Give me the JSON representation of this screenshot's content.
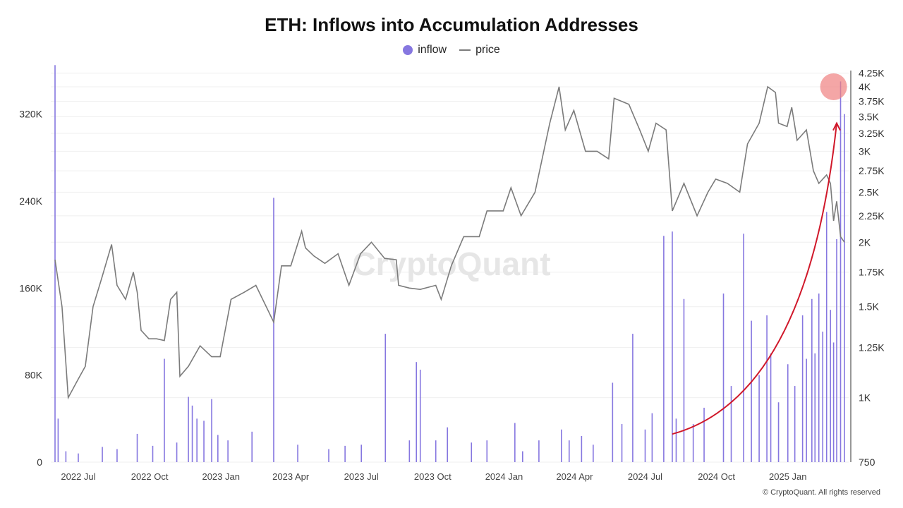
{
  "chart_data": {
    "type": "bar+line",
    "title": "ETH: Inflows into Accumulation Addresses",
    "legend": [
      {
        "name": "inflow",
        "marker": "dot",
        "color": "#8677e0"
      },
      {
        "name": "price",
        "marker": "line",
        "color": "#7b7b7b"
      }
    ],
    "legend_position": "top-center",
    "grid": true,
    "x_axis": {
      "type": "date",
      "range": [
        "2022-06-01",
        "2025-03-15"
      ],
      "tick_labels": [
        "2022 Jul",
        "2022 Oct",
        "2023 Jan",
        "2023 Apr",
        "2023 Jul",
        "2023 Oct",
        "2024 Jan",
        "2024 Apr",
        "2024 Jul",
        "2024 Oct",
        "2025 Jan"
      ]
    },
    "y_axis_left": {
      "series": "inflow",
      "range": [
        0,
        360000
      ],
      "tick_labels": [
        "0",
        "80K",
        "160K",
        "240K",
        "320K"
      ],
      "tick_values": [
        0,
        80000,
        160000,
        240000,
        320000
      ]
    },
    "y_axis_right": {
      "series": "price",
      "scale": "log",
      "range": [
        750,
        4300
      ],
      "tick_labels": [
        "750",
        "1K",
        "1.25K",
        "1.5K",
        "1.75K",
        "2K",
        "2.25K",
        "2.5K",
        "2.75K",
        "3K",
        "3.25K",
        "3.5K",
        "3.75K",
        "4K",
        "4.25K"
      ],
      "tick_values": [
        750,
        1000,
        1250,
        1500,
        1750,
        2000,
        2250,
        2500,
        2750,
        3000,
        3250,
        3500,
        3750,
        4000,
        4250
      ]
    },
    "series": [
      {
        "name": "inflow",
        "type": "bar",
        "color": "#8677e0",
        "points": [
          [
            "2022-06-01",
            365000
          ],
          [
            "2022-06-05",
            40000
          ],
          [
            "2022-06-15",
            10000
          ],
          [
            "2022-07-01",
            8000
          ],
          [
            "2022-08-01",
            14000
          ],
          [
            "2022-08-20",
            12000
          ],
          [
            "2022-09-15",
            26000
          ],
          [
            "2022-10-05",
            15000
          ],
          [
            "2022-10-20",
            95000
          ],
          [
            "2022-11-05",
            18000
          ],
          [
            "2022-11-20",
            60000
          ],
          [
            "2022-11-25",
            52000
          ],
          [
            "2022-12-01",
            40000
          ],
          [
            "2022-12-10",
            38000
          ],
          [
            "2022-12-20",
            58000
          ],
          [
            "2022-12-28",
            25000
          ],
          [
            "2023-01-10",
            20000
          ],
          [
            "2023-02-10",
            28000
          ],
          [
            "2023-03-10",
            243000
          ],
          [
            "2023-04-10",
            16000
          ],
          [
            "2023-05-20",
            12000
          ],
          [
            "2023-06-10",
            15000
          ],
          [
            "2023-07-01",
            16000
          ],
          [
            "2023-08-01",
            118000
          ],
          [
            "2023-09-01",
            20000
          ],
          [
            "2023-09-10",
            92000
          ],
          [
            "2023-09-15",
            85000
          ],
          [
            "2023-10-05",
            20000
          ],
          [
            "2023-10-20",
            32000
          ],
          [
            "2023-11-20",
            18000
          ],
          [
            "2023-12-10",
            20000
          ],
          [
            "2024-01-15",
            36000
          ],
          [
            "2024-01-25",
            10000
          ],
          [
            "2024-02-15",
            20000
          ],
          [
            "2024-03-15",
            30000
          ],
          [
            "2024-03-25",
            20000
          ],
          [
            "2024-04-10",
            24000
          ],
          [
            "2024-04-25",
            16000
          ],
          [
            "2024-05-20",
            73000
          ],
          [
            "2024-06-01",
            35000
          ],
          [
            "2024-06-15",
            118000
          ],
          [
            "2024-07-01",
            30000
          ],
          [
            "2024-07-10",
            45000
          ],
          [
            "2024-07-25",
            208000
          ],
          [
            "2024-08-05",
            212000
          ],
          [
            "2024-08-10",
            40000
          ],
          [
            "2024-08-20",
            150000
          ],
          [
            "2024-09-01",
            35000
          ],
          [
            "2024-09-15",
            50000
          ],
          [
            "2024-10-10",
            155000
          ],
          [
            "2024-10-20",
            70000
          ],
          [
            "2024-11-05",
            210000
          ],
          [
            "2024-11-15",
            130000
          ],
          [
            "2024-11-25",
            80000
          ],
          [
            "2024-12-05",
            135000
          ],
          [
            "2024-12-10",
            100000
          ],
          [
            "2024-12-20",
            55000
          ],
          [
            "2025-01-01",
            90000
          ],
          [
            "2025-01-10",
            70000
          ],
          [
            "2025-01-20",
            135000
          ],
          [
            "2025-01-25",
            95000
          ],
          [
            "2025-02-01",
            150000
          ],
          [
            "2025-02-05",
            100000
          ],
          [
            "2025-02-10",
            155000
          ],
          [
            "2025-02-15",
            120000
          ],
          [
            "2025-02-20",
            230000
          ],
          [
            "2025-02-25",
            140000
          ],
          [
            "2025-03-01",
            110000
          ],
          [
            "2025-03-05",
            205000
          ],
          [
            "2025-03-10",
            350000
          ],
          [
            "2025-03-15",
            320000
          ]
        ]
      },
      {
        "name": "price",
        "type": "line",
        "color": "#7b7b7b",
        "points": [
          [
            "2022-06-01",
            1850
          ],
          [
            "2022-06-10",
            1500
          ],
          [
            "2022-06-18",
            1000
          ],
          [
            "2022-06-30",
            1080
          ],
          [
            "2022-07-10",
            1150
          ],
          [
            "2022-07-20",
            1500
          ],
          [
            "2022-07-31",
            1700
          ],
          [
            "2022-08-13",
            1980
          ],
          [
            "2022-08-20",
            1650
          ],
          [
            "2022-08-31",
            1550
          ],
          [
            "2022-09-10",
            1750
          ],
          [
            "2022-09-15",
            1600
          ],
          [
            "2022-09-20",
            1350
          ],
          [
            "2022-09-30",
            1300
          ],
          [
            "2022-10-10",
            1300
          ],
          [
            "2022-10-20",
            1290
          ],
          [
            "2022-10-28",
            1550
          ],
          [
            "2022-11-05",
            1600
          ],
          [
            "2022-11-09",
            1100
          ],
          [
            "2022-11-20",
            1150
          ],
          [
            "2022-12-05",
            1260
          ],
          [
            "2022-12-20",
            1200
          ],
          [
            "2022-12-31",
            1200
          ],
          [
            "2023-01-14",
            1550
          ],
          [
            "2023-01-31",
            1600
          ],
          [
            "2023-02-15",
            1650
          ],
          [
            "2023-03-10",
            1400
          ],
          [
            "2023-03-20",
            1800
          ],
          [
            "2023-04-01",
            1800
          ],
          [
            "2023-04-15",
            2100
          ],
          [
            "2023-04-20",
            1950
          ],
          [
            "2023-05-01",
            1880
          ],
          [
            "2023-05-15",
            1820
          ],
          [
            "2023-06-01",
            1900
          ],
          [
            "2023-06-15",
            1650
          ],
          [
            "2023-06-30",
            1900
          ],
          [
            "2023-07-14",
            2000
          ],
          [
            "2023-07-31",
            1860
          ],
          [
            "2023-08-15",
            1850
          ],
          [
            "2023-08-18",
            1650
          ],
          [
            "2023-09-01",
            1630
          ],
          [
            "2023-09-15",
            1620
          ],
          [
            "2023-10-05",
            1650
          ],
          [
            "2023-10-12",
            1550
          ],
          [
            "2023-10-25",
            1800
          ],
          [
            "2023-11-10",
            2050
          ],
          [
            "2023-11-30",
            2050
          ],
          [
            "2023-12-10",
            2300
          ],
          [
            "2023-12-31",
            2300
          ],
          [
            "2024-01-10",
            2550
          ],
          [
            "2024-01-23",
            2250
          ],
          [
            "2024-02-10",
            2500
          ],
          [
            "2024-02-29",
            3400
          ],
          [
            "2024-03-12",
            4000
          ],
          [
            "2024-03-20",
            3300
          ],
          [
            "2024-03-31",
            3600
          ],
          [
            "2024-04-15",
            3000
          ],
          [
            "2024-04-30",
            3000
          ],
          [
            "2024-05-15",
            2900
          ],
          [
            "2024-05-22",
            3800
          ],
          [
            "2024-06-10",
            3700
          ],
          [
            "2024-06-24",
            3300
          ],
          [
            "2024-07-05",
            3000
          ],
          [
            "2024-07-15",
            3400
          ],
          [
            "2024-07-28",
            3300
          ],
          [
            "2024-08-05",
            2300
          ],
          [
            "2024-08-20",
            2600
          ],
          [
            "2024-09-06",
            2250
          ],
          [
            "2024-09-20",
            2500
          ],
          [
            "2024-09-30",
            2650
          ],
          [
            "2024-10-15",
            2600
          ],
          [
            "2024-10-31",
            2500
          ],
          [
            "2024-11-10",
            3100
          ],
          [
            "2024-11-25",
            3400
          ],
          [
            "2024-12-06",
            4000
          ],
          [
            "2024-12-16",
            3900
          ],
          [
            "2024-12-20",
            3400
          ],
          [
            "2024-12-31",
            3350
          ],
          [
            "2025-01-06",
            3650
          ],
          [
            "2025-01-13",
            3150
          ],
          [
            "2025-01-25",
            3300
          ],
          [
            "2025-02-03",
            2750
          ],
          [
            "2025-02-10",
            2600
          ],
          [
            "2025-02-20",
            2700
          ],
          [
            "2025-02-25",
            2600
          ],
          [
            "2025-03-01",
            2200
          ],
          [
            "2025-03-05",
            2400
          ],
          [
            "2025-03-10",
            2050
          ],
          [
            "2025-03-15",
            2000
          ]
        ]
      }
    ],
    "annotations": [
      {
        "type": "arrow",
        "color": "#d0182a",
        "from": [
          "2024-08-05",
          850
        ],
        "to": [
          "2025-03-05",
          3400
        ]
      },
      {
        "type": "circle-highlight",
        "color": "#f08080",
        "at": [
          "2025-03-01",
          4000
        ]
      }
    ],
    "watermark": "CryptoQuant"
  },
  "copyright": "© CryptoQuant. All rights reserved"
}
